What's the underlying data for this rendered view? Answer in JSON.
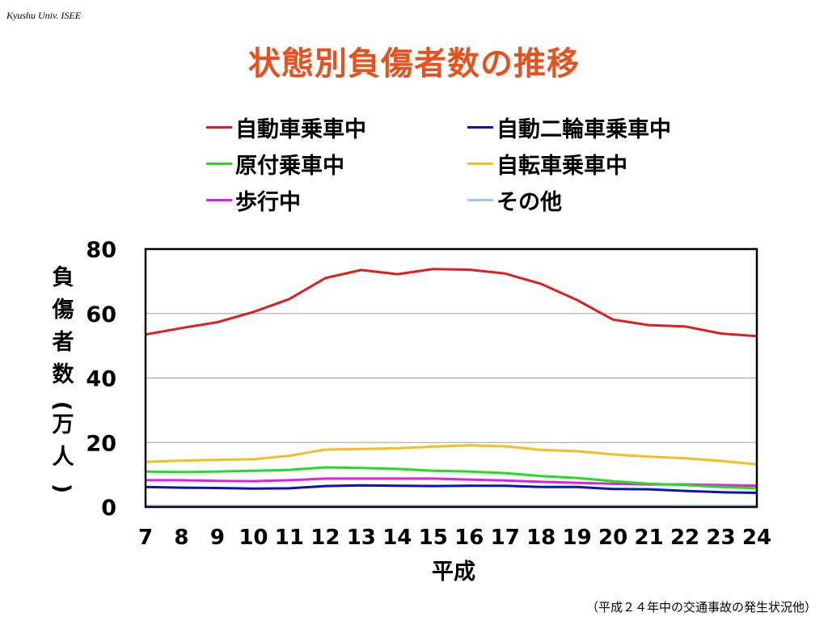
{
  "header": {
    "label": "Kyushu Univ. ISEE"
  },
  "slide": {
    "title": "状態別負傷者数の推移",
    "footnote": "（平成２４年中の交通事故の発生状況他）"
  },
  "colors": {
    "title": "#e8501e",
    "car": "#dd1f1f",
    "motorcycle": "#0a14b4",
    "moped": "#22dd22",
    "bicycle": "#f0c020",
    "pedestrian": "#e020e0",
    "other": "#9fc8ec"
  },
  "chart_data": {
    "type": "line",
    "xlabel": "平成",
    "ylabel": "負傷者数(万人)",
    "ylim": [
      0,
      80
    ],
    "yticks": [
      0,
      20,
      40,
      60,
      80
    ],
    "grid": true,
    "legend_placement": "top",
    "x": [
      "7",
      "8",
      "9",
      "10",
      "11",
      "12",
      "13",
      "14",
      "15",
      "16",
      "17",
      "18",
      "19",
      "20",
      "21",
      "22",
      "23",
      "24"
    ],
    "series": [
      {
        "name": "自動車乗車中",
        "color_key": "car",
        "values": [
          53.5,
          55.5,
          57.3,
          60.5,
          64.5,
          71.0,
          73.5,
          72.2,
          73.8,
          73.6,
          72.4,
          69.2,
          64.2,
          58.1,
          56.4,
          56.0,
          53.8,
          53.0
        ]
      },
      {
        "name": "自動二輪車乗車中",
        "color_key": "motorcycle",
        "values": [
          6.2,
          6.0,
          5.9,
          5.7,
          5.8,
          6.5,
          6.7,
          6.6,
          6.5,
          6.6,
          6.6,
          6.2,
          6.2,
          5.6,
          5.5,
          5.0,
          4.6,
          4.4
        ]
      },
      {
        "name": "原付乗車中",
        "color_key": "moped",
        "values": [
          11.0,
          10.8,
          11.0,
          11.2,
          11.5,
          12.3,
          12.1,
          11.8,
          11.2,
          11.0,
          10.5,
          9.6,
          9.0,
          8.0,
          7.2,
          6.8,
          6.2,
          5.8
        ]
      },
      {
        "name": "自転車乗車中",
        "color_key": "bicycle",
        "values": [
          14.0,
          14.4,
          14.6,
          14.8,
          15.9,
          17.8,
          18.0,
          18.2,
          18.7,
          19.1,
          18.8,
          17.7,
          17.3,
          16.3,
          15.6,
          15.1,
          14.3,
          13.2
        ]
      },
      {
        "name": "歩行中",
        "color_key": "pedestrian",
        "values": [
          8.3,
          8.3,
          8.1,
          8.0,
          8.3,
          8.8,
          8.8,
          8.8,
          8.8,
          8.5,
          8.2,
          7.8,
          7.5,
          7.2,
          7.0,
          7.0,
          6.8,
          6.6
        ]
      },
      {
        "name": "その他",
        "color_key": "other",
        "values": [
          0.4,
          0.4,
          0.4,
          0.4,
          0.4,
          0.4,
          0.4,
          0.4,
          0.4,
          0.4,
          0.4,
          0.4,
          0.4,
          0.4,
          0.4,
          0.4,
          0.4,
          0.4
        ]
      }
    ]
  }
}
